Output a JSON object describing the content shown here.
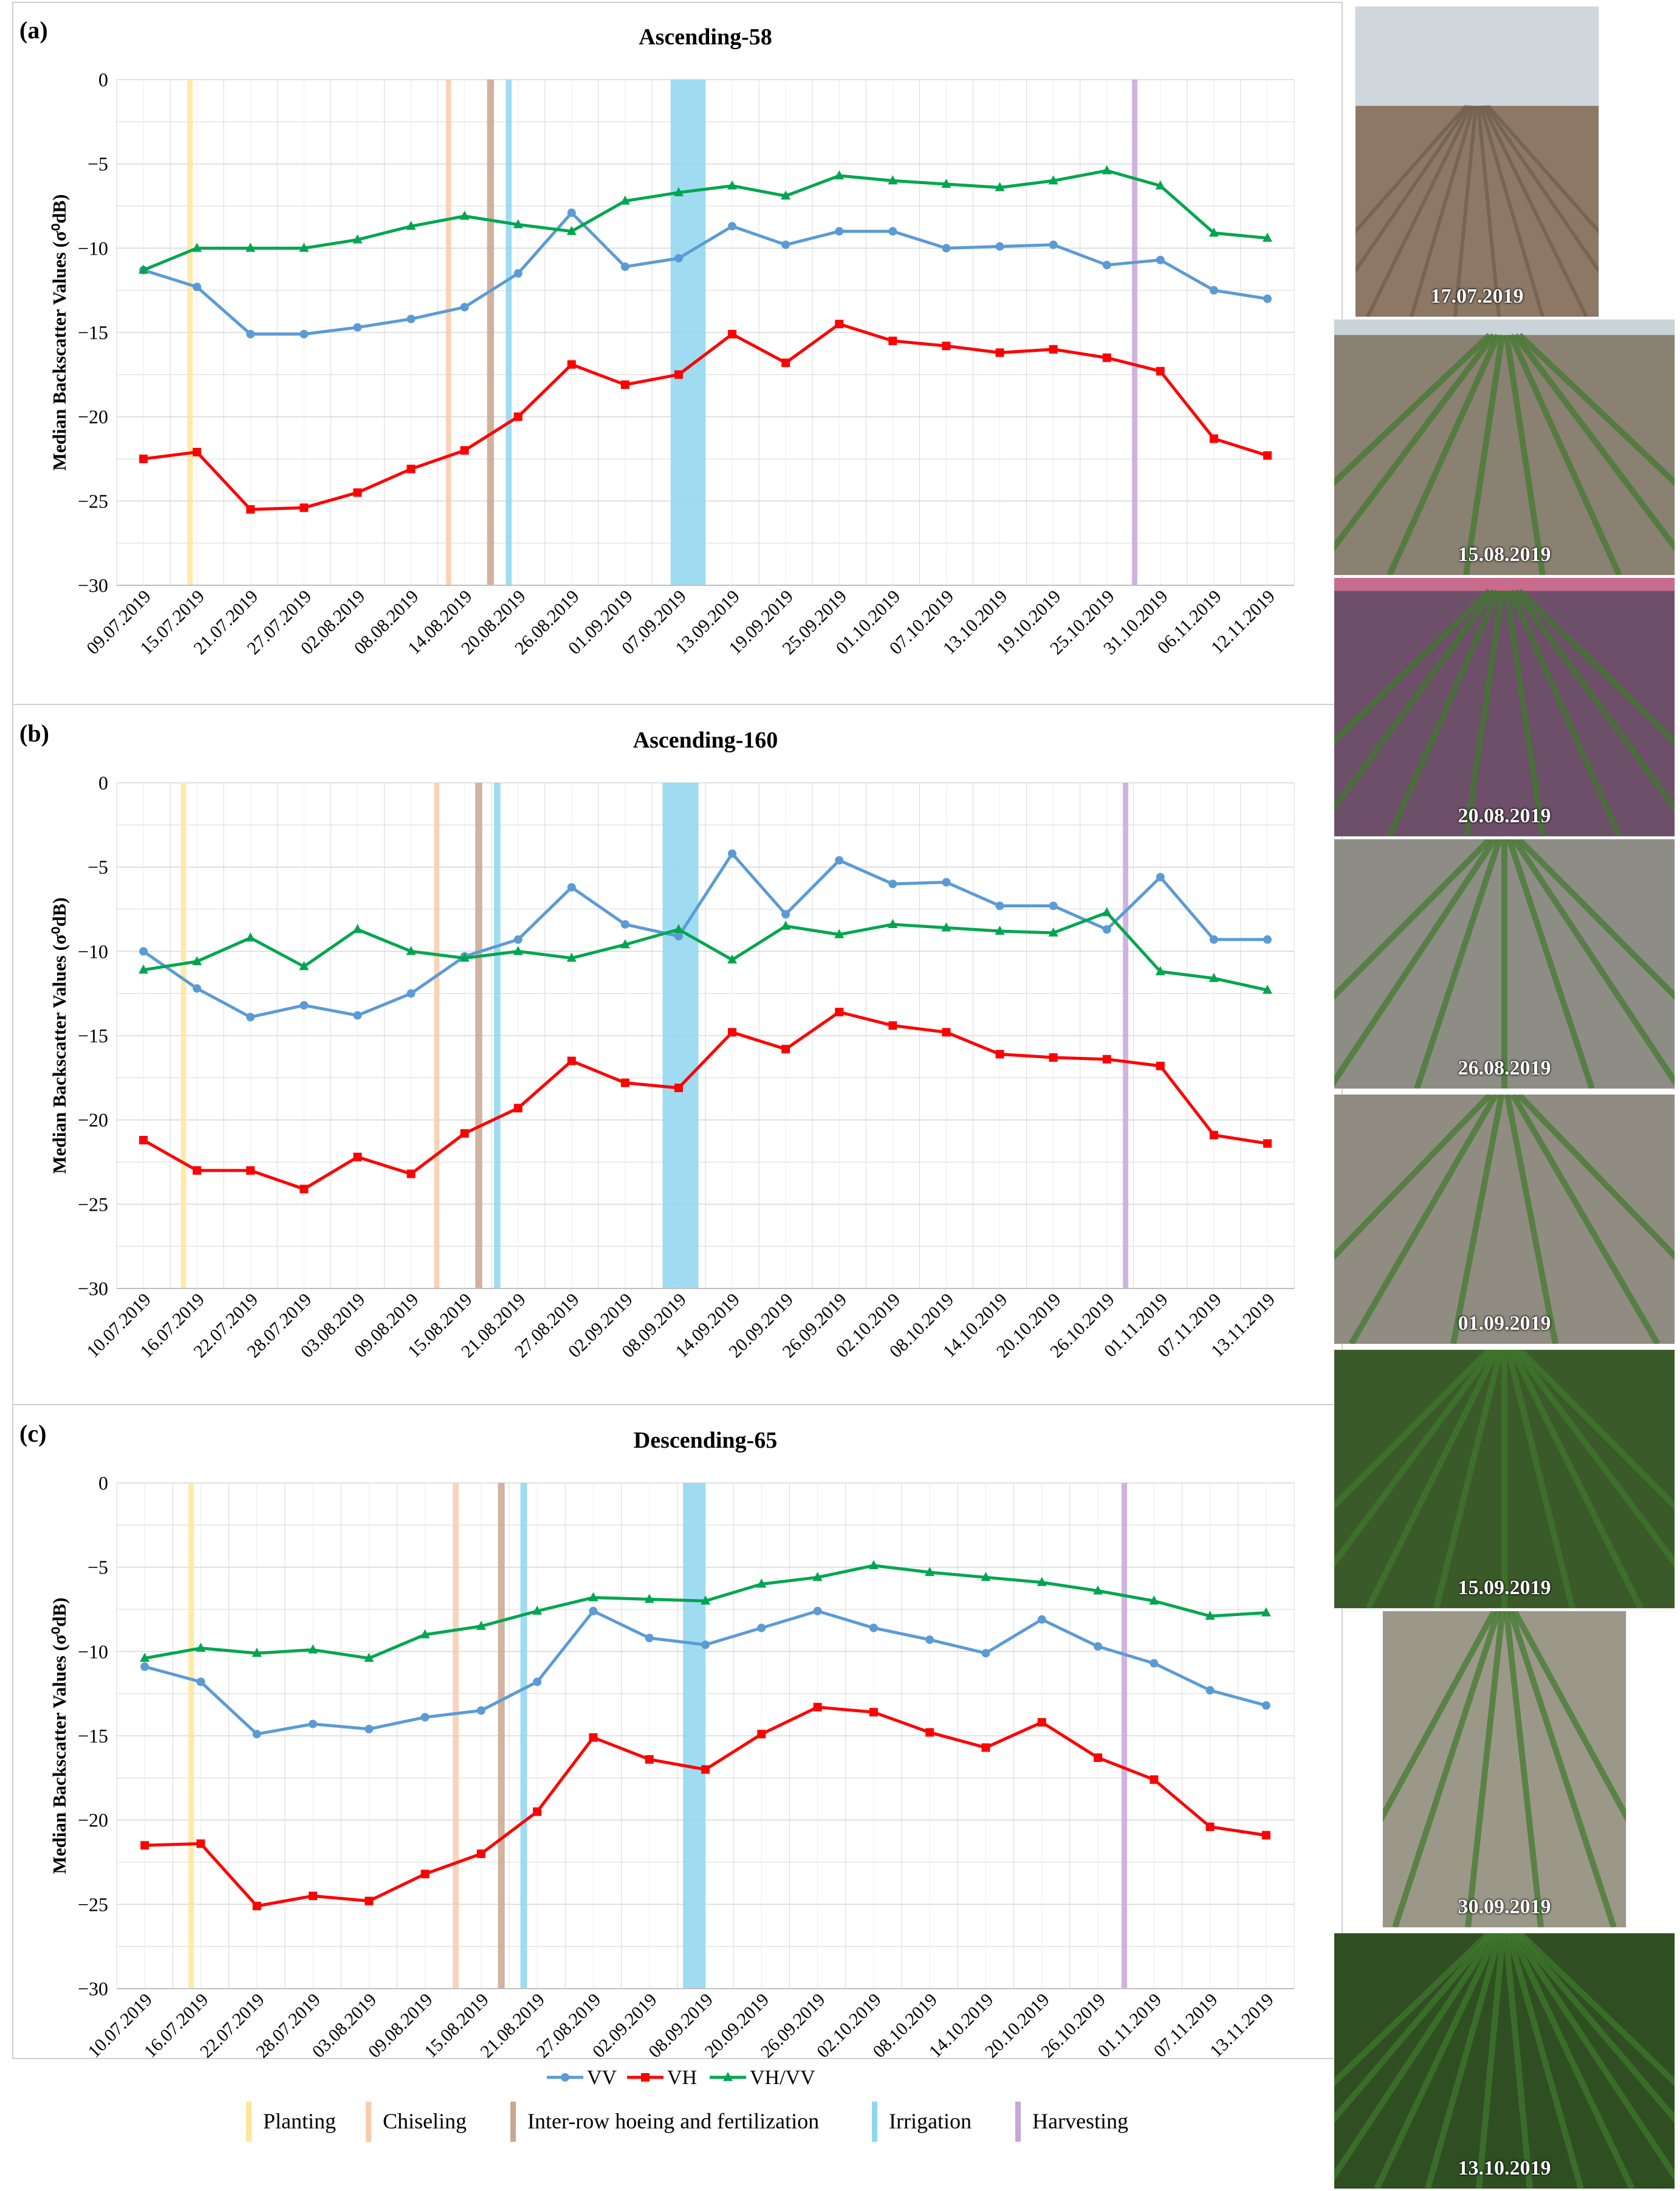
{
  "colors": {
    "vv": "#5b9bd5",
    "vh": "#ff0000",
    "ratio": "#00a64f",
    "planting": "#ffe699",
    "chiseling": "#f8cbad",
    "hoeing": "#c9a68f",
    "irrigation": "#8ed6f0",
    "harvesting": "#c8a7d8",
    "grid": "#d9d9d9"
  },
  "legend": {
    "series": [
      "VV",
      "VH",
      "VH/VV"
    ],
    "events": [
      "Planting",
      "Chiseling",
      "Inter-row hoeing and fertilization",
      "Irrigation",
      "Harvesting"
    ]
  },
  "chart_data": [
    {
      "type": "line",
      "panel_label": "(a)",
      "title": "Ascending-58",
      "ylabel": "Median Backscatter Values (σ⁰dB)",
      "ylim": [
        -30,
        0
      ],
      "yticks": [
        0,
        -5,
        -10,
        -15,
        -20,
        -25,
        -30
      ],
      "x": [
        "09.07.2019",
        "15.07.2019",
        "21.07.2019",
        "27.07.2019",
        "02.08.2019",
        "08.08.2019",
        "14.08.2019",
        "20.08.2019",
        "26.08.2019",
        "01.09.2019",
        "07.09.2019",
        "13.09.2019",
        "19.09.2019",
        "25.09.2019",
        "01.10.2019",
        "07.10.2019",
        "13.10.2019",
        "19.10.2019",
        "25.10.2019",
        "31.10.2019",
        "06.11.2019",
        "12.11.2019"
      ],
      "series": [
        {
          "name": "VV",
          "values": [
            -11.3,
            -12.3,
            -15.1,
            -15.1,
            -14.7,
            -14.2,
            -13.5,
            -11.5,
            -7.9,
            -11.1,
            -10.6,
            -8.7,
            -9.8,
            -9.0,
            -9.0,
            -10.0,
            -9.9,
            -9.8,
            -11.0,
            -10.7,
            -12.5,
            -13.0
          ]
        },
        {
          "name": "VH",
          "values": [
            -22.5,
            -22.1,
            -25.5,
            -25.4,
            -24.5,
            -23.1,
            -22.0,
            -20.0,
            -16.9,
            -18.1,
            -17.5,
            -15.1,
            -16.8,
            -14.5,
            -15.5,
            -15.8,
            -16.2,
            -16.0,
            -16.5,
            -17.3,
            -21.3,
            -22.3
          ]
        },
        {
          "name": "VH/VV",
          "values": [
            -11.3,
            -10.0,
            -10.0,
            -10.0,
            -9.5,
            -8.7,
            -8.1,
            -8.6,
            -9.0,
            -7.2,
            -6.7,
            -6.3,
            -6.9,
            -5.7,
            -6.0,
            -6.2,
            -6.4,
            -6.0,
            -5.4,
            -6.3,
            -9.1,
            -9.4
          ]
        }
      ],
      "events": [
        {
          "type": "Planting",
          "x_start": 1.32,
          "x_end": 1.42
        },
        {
          "type": "Chiseling",
          "x_start": 6.15,
          "x_end": 6.25
        },
        {
          "type": "Inter-row hoeing and fertilization",
          "x_start": 6.92,
          "x_end": 7.05
        },
        {
          "type": "Irrigation",
          "x_start": 7.27,
          "x_end": 7.38
        },
        {
          "type": "Irrigation",
          "x_start": 10.35,
          "x_end": 11.0
        },
        {
          "type": "Harvesting",
          "x_start": 18.97,
          "x_end": 19.07
        }
      ]
    },
    {
      "type": "line",
      "panel_label": "(b)",
      "title": "Ascending-160",
      "ylabel": "Median Backscatter Values (σ⁰dB)",
      "ylim": [
        -30,
        0
      ],
      "yticks": [
        0,
        -5,
        -10,
        -15,
        -20,
        -25,
        -30
      ],
      "x": [
        "10.07.2019",
        "16.07.2019",
        "22.07.2019",
        "28.07.2019",
        "03.08.2019",
        "09.08.2019",
        "15.08.2019",
        "21.08.2019",
        "27.08.2019",
        "02.09.2019",
        "08.09.2019",
        "14.09.2019",
        "20.09.2019",
        "26.09.2019",
        "02.10.2019",
        "08.10.2019",
        "14.10.2019",
        "20.10.2019",
        "26.10.2019",
        "01.11.2019",
        "07.11.2019",
        "13.11.2019"
      ],
      "series": [
        {
          "name": "VV",
          "values": [
            -10.0,
            -12.2,
            -13.9,
            -13.2,
            -13.8,
            -12.5,
            -10.3,
            -9.3,
            -6.2,
            -8.4,
            -9.1,
            -4.2,
            -7.8,
            -4.6,
            -6.0,
            -5.9,
            -7.3,
            -7.3,
            -8.7,
            -5.6,
            -9.3,
            -9.3
          ]
        },
        {
          "name": "VH",
          "values": [
            -21.2,
            -23.0,
            -23.0,
            -24.1,
            -22.2,
            -23.2,
            -20.8,
            -19.3,
            -16.5,
            -17.8,
            -18.1,
            -14.8,
            -15.8,
            -13.6,
            -14.4,
            -14.8,
            -16.1,
            -16.3,
            -16.4,
            -16.8,
            -20.9,
            -21.4
          ]
        },
        {
          "name": "VH/VV",
          "values": [
            -11.1,
            -10.6,
            -9.2,
            -10.9,
            -8.7,
            -10.0,
            -10.4,
            -10.0,
            -10.4,
            -9.6,
            -8.7,
            -10.5,
            -8.5,
            -9.0,
            -8.4,
            -8.6,
            -8.8,
            -8.9,
            -7.7,
            -11.2,
            -11.6,
            -12.3
          ]
        }
      ],
      "events": [
        {
          "type": "Planting",
          "x_start": 1.2,
          "x_end": 1.3
        },
        {
          "type": "Chiseling",
          "x_start": 5.93,
          "x_end": 6.03
        },
        {
          "type": "Inter-row hoeing and fertilization",
          "x_start": 6.7,
          "x_end": 6.83
        },
        {
          "type": "Irrigation",
          "x_start": 7.05,
          "x_end": 7.17
        },
        {
          "type": "Irrigation",
          "x_start": 10.2,
          "x_end": 10.87
        },
        {
          "type": "Harvesting",
          "x_start": 18.8,
          "x_end": 18.9
        }
      ]
    },
    {
      "type": "line",
      "panel_label": "(c)",
      "title": "Descending-65",
      "ylabel": "Median Backscatter Values (σ⁰dB)",
      "ylim": [
        -30,
        0
      ],
      "yticks": [
        0,
        -5,
        -10,
        -15,
        -20,
        -25,
        -30
      ],
      "x": [
        "10.07.2019",
        "16.07.2019",
        "22.07.2019",
        "28.07.2019",
        "03.08.2019",
        "09.08.2019",
        "15.08.2019",
        "21.08.2019",
        "27.08.2019",
        "02.09.2019",
        "08.09.2019",
        "20.09.2019",
        "26.09.2019",
        "02.10.2019",
        "08.10.2019",
        "14.10.2019",
        "20.10.2019",
        "26.10.2019",
        "01.11.2019",
        "07.11.2019",
        "13.11.2019"
      ],
      "series": [
        {
          "name": "VV",
          "values": [
            -10.9,
            -11.8,
            -14.9,
            -14.3,
            -14.6,
            -13.9,
            -13.5,
            -11.8,
            -7.6,
            -9.2,
            -9.6,
            -8.6,
            -7.6,
            -8.6,
            -9.3,
            -10.1,
            -8.1,
            -9.7,
            -10.7,
            -12.3,
            -13.2
          ]
        },
        {
          "name": "VH",
          "values": [
            -21.5,
            -21.4,
            -25.1,
            -24.5,
            -24.8,
            -23.2,
            -22.0,
            -19.5,
            -15.1,
            -16.4,
            -17.0,
            -14.9,
            -13.3,
            -13.6,
            -14.8,
            -15.7,
            -14.2,
            -16.3,
            -17.6,
            -20.4,
            -20.9
          ]
        },
        {
          "name": "VH/VV",
          "values": [
            -10.4,
            -9.8,
            -10.1,
            -9.9,
            -10.4,
            -9.0,
            -8.5,
            -7.6,
            -6.8,
            -6.9,
            -7.0,
            -6.0,
            -5.6,
            -4.9,
            -5.3,
            -5.6,
            -5.9,
            -6.4,
            -7.0,
            -7.9,
            -7.7
          ]
        }
      ],
      "events": [
        {
          "type": "Planting",
          "x_start": 1.28,
          "x_end": 1.38
        },
        {
          "type": "Chiseling",
          "x_start": 6.0,
          "x_end": 6.1
        },
        {
          "type": "Inter-row hoeing and fertilization",
          "x_start": 6.8,
          "x_end": 6.92
        },
        {
          "type": "Irrigation",
          "x_start": 7.2,
          "x_end": 7.32
        },
        {
          "type": "Irrigation",
          "x_start": 10.1,
          "x_end": 10.5
        },
        {
          "type": "Harvesting",
          "x_start": 17.92,
          "x_end": 18.02
        }
      ]
    }
  ],
  "photos": [
    {
      "date": "17.07.2019"
    },
    {
      "date": "15.08.2019"
    },
    {
      "date": "20.08.2019"
    },
    {
      "date": "26.08.2019"
    },
    {
      "date": "01.09.2019"
    },
    {
      "date": "15.09.2019"
    },
    {
      "date": "30.09.2019"
    },
    {
      "date": "13.10.2019"
    }
  ]
}
